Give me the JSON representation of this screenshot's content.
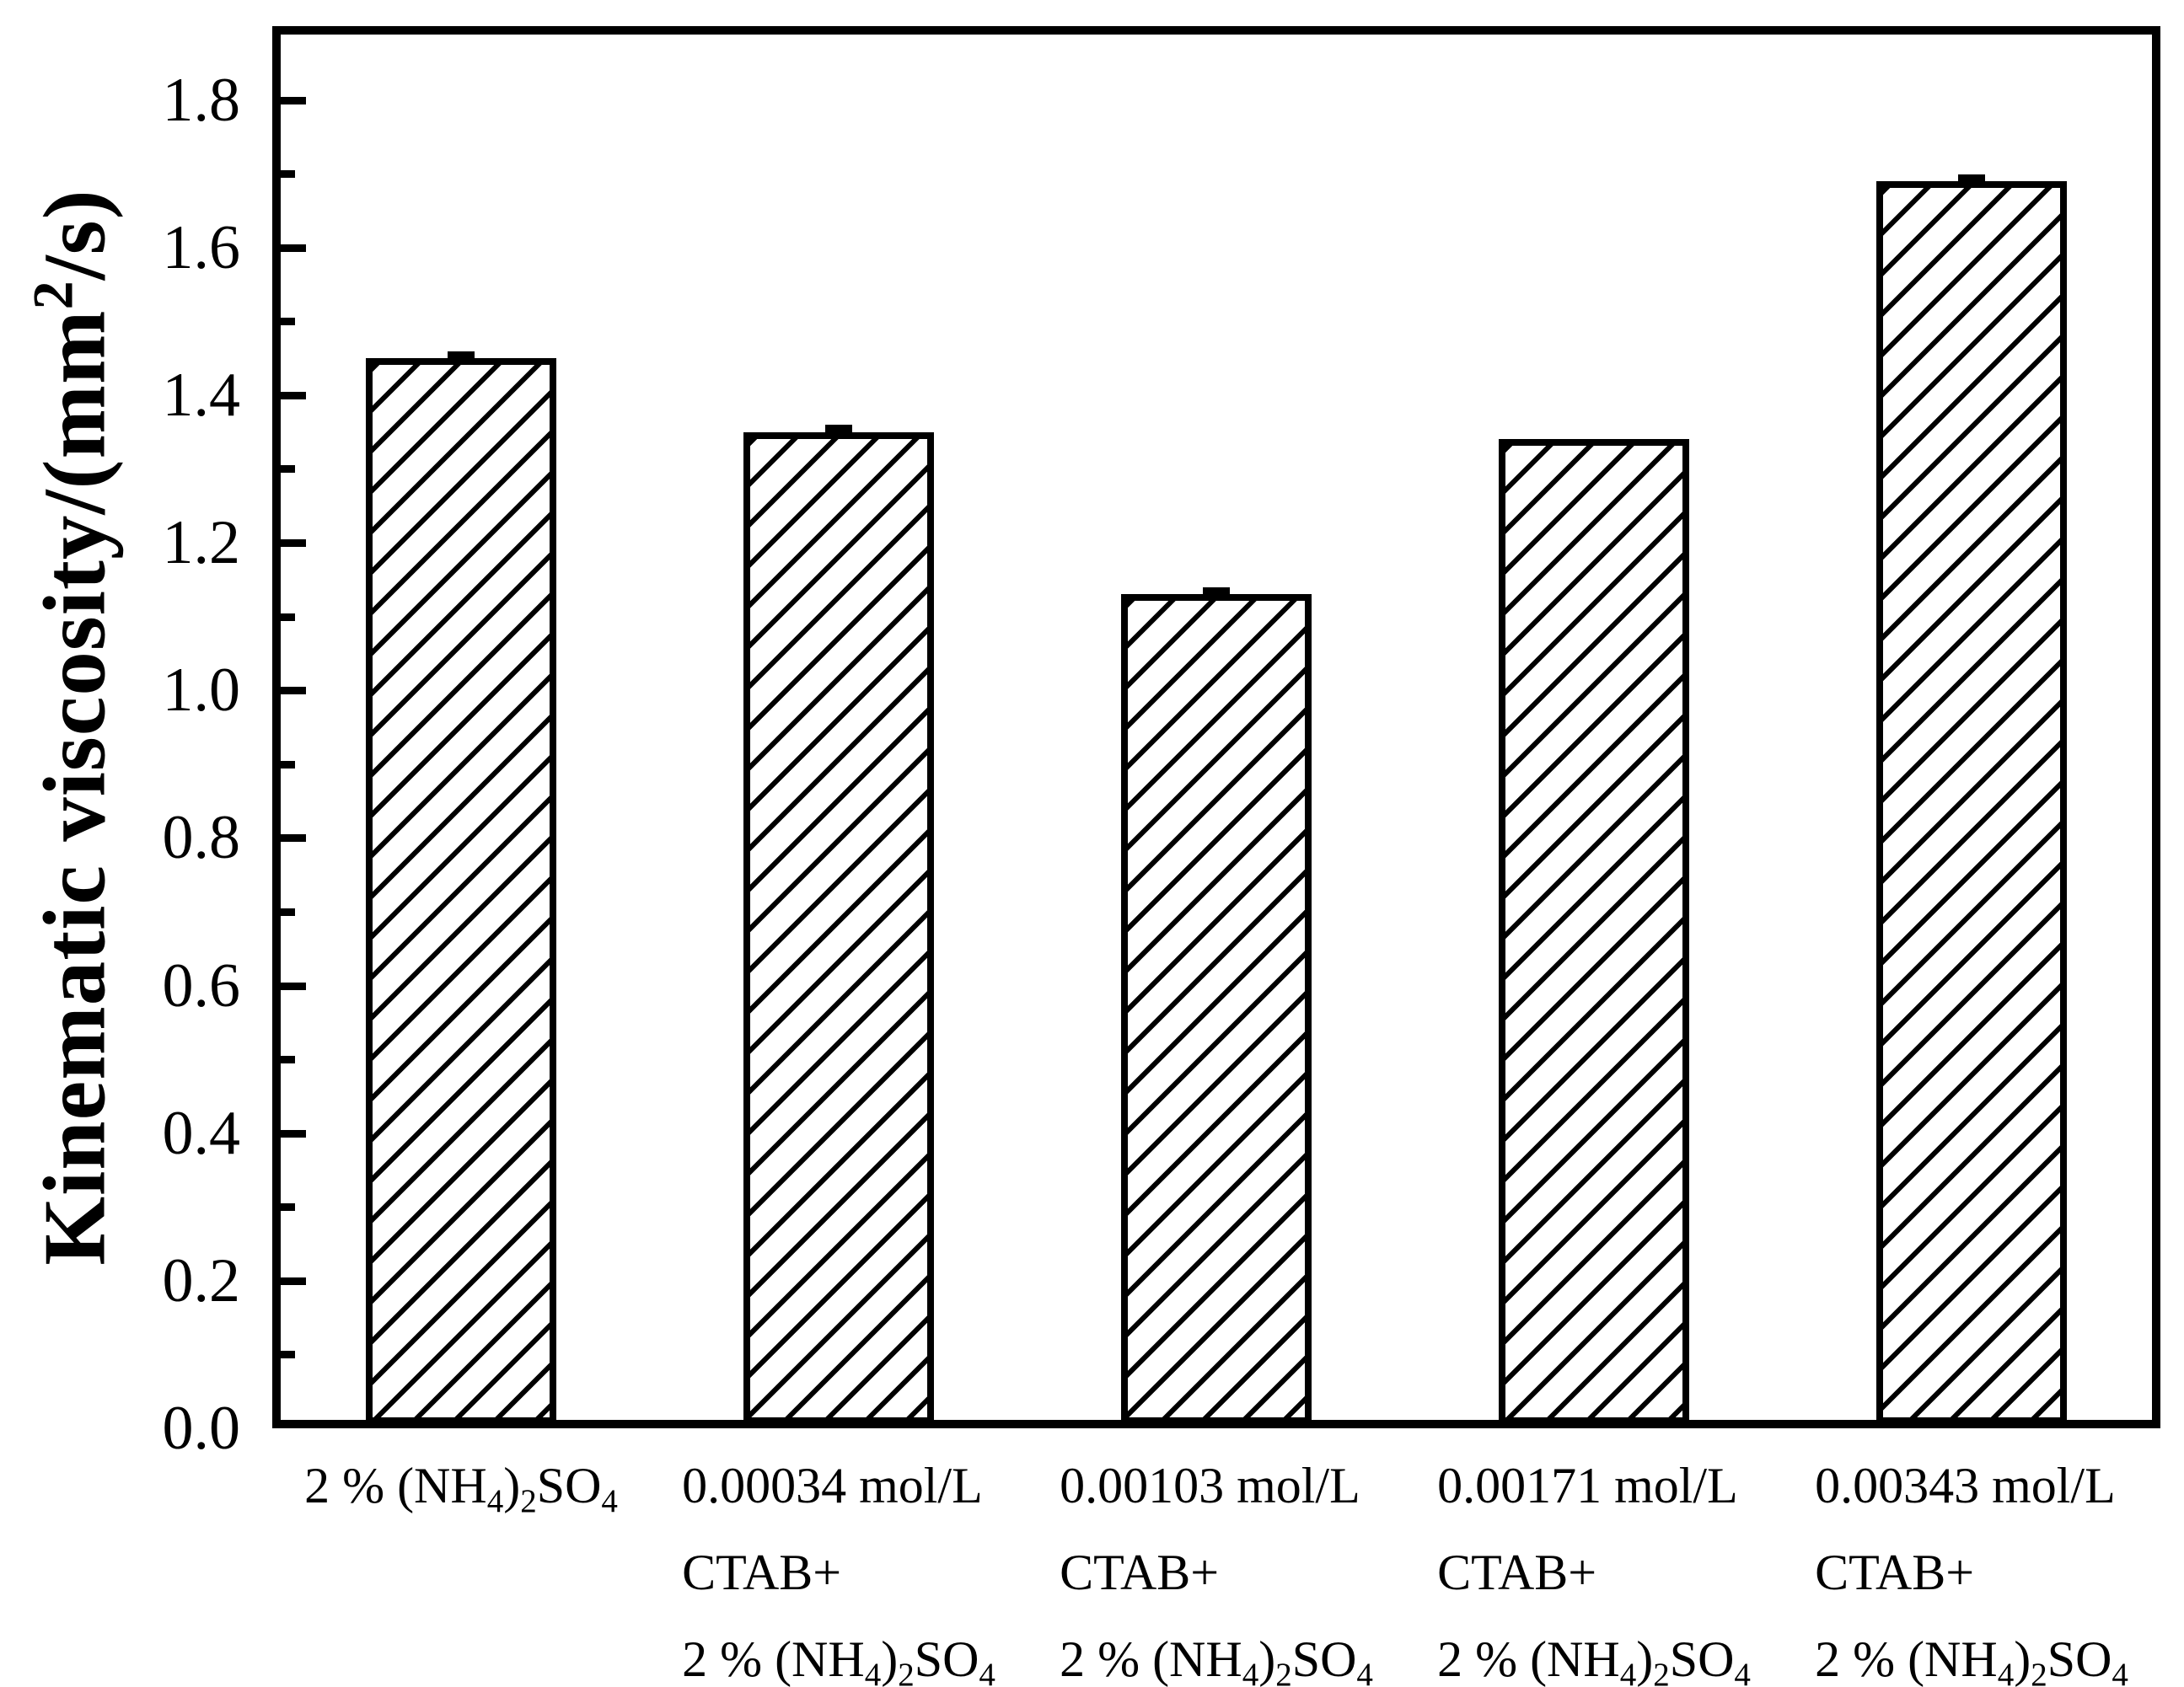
{
  "chart_data": {
    "type": "bar",
    "title": "",
    "xlabel": "",
    "ylabel": "Kinematic viscosity/(mm^2/s)",
    "ylabel_plain": "Kinematic viscosity/(mm2/s)",
    "markup_note": "~x marks a subscript character, ^x marks a superscript character",
    "categories": [
      [
        "2 % (NH~4)~2SO~4"
      ],
      [
        "0.00034 mol/L",
        "CTAB+",
        "2 % (NH~4)~2SO~4"
      ],
      [
        "0.00103 mol/L",
        "CTAB+",
        "2 % (NH~4)~2SO~4"
      ],
      [
        "0.00171 mol/L",
        "CTAB+",
        "2 % (NH~4)~2SO~4"
      ],
      [
        "0.00343 mol/L",
        "CTAB+",
        "2 % (NH~4)~2SO~4"
      ]
    ],
    "values": [
      1.45,
      1.35,
      1.13,
      1.34,
      1.69
    ],
    "errors": [
      0.003,
      0.004,
      0.004,
      0,
      0.003
    ],
    "yticks": [
      "0.0",
      "0.2",
      "0.4",
      "0.6",
      "0.8",
      "1.0",
      "1.2",
      "1.4",
      "1.6",
      "1.8"
    ],
    "ylim": [
      0,
      1.9
    ],
    "ytick_major_step": 0.2,
    "ytick_minor_step": 0.1,
    "grid": "off",
    "legend": "none",
    "bar_style": "diagonal-forward-hatch",
    "bar_color": "#000000",
    "background_color": "#ffffff"
  }
}
